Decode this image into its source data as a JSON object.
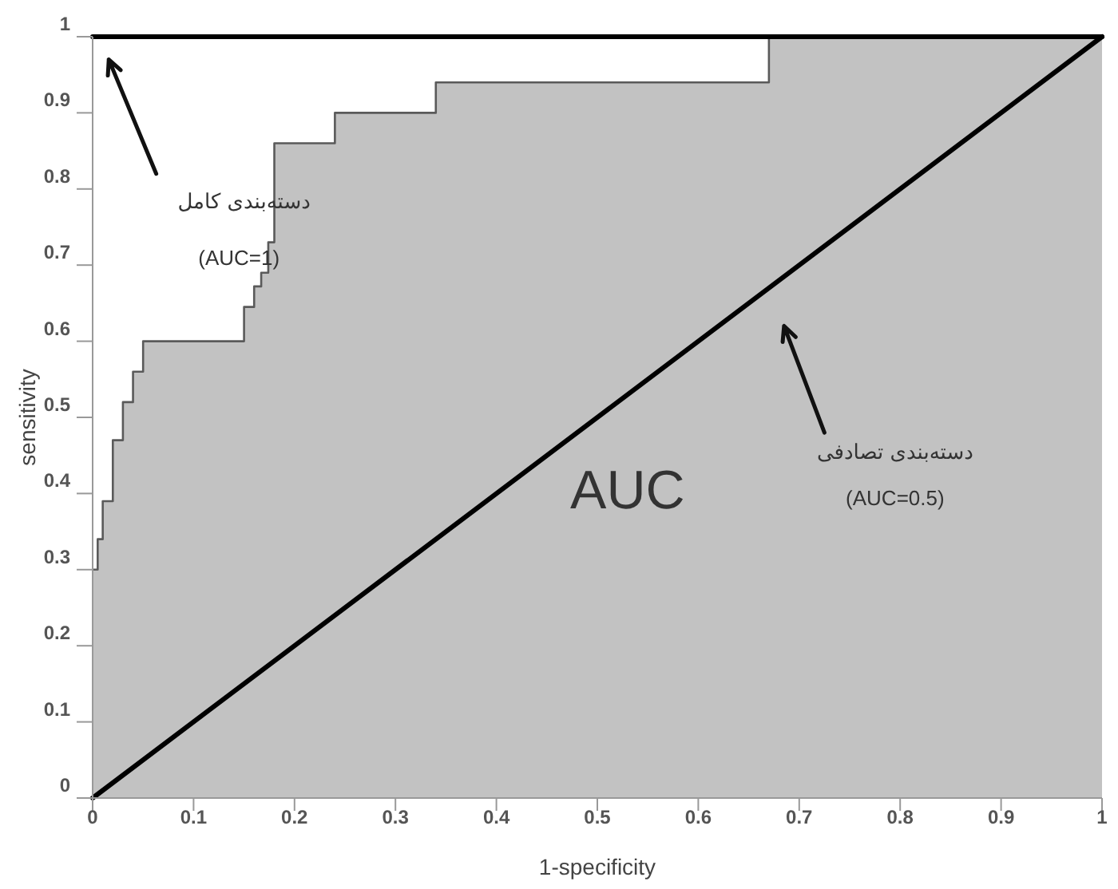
{
  "chart_data": {
    "type": "step",
    "xlabel": "1-specificity",
    "ylabel": "sensitivity",
    "xlim": [
      0,
      1
    ],
    "ylim": [
      0,
      1
    ],
    "xticks": [
      0,
      0.1,
      0.2,
      0.3,
      0.4,
      0.5,
      0.6,
      0.7,
      0.8,
      0.9,
      1
    ],
    "yticks": [
      0,
      0.1,
      0.2,
      0.3,
      0.4,
      0.5,
      0.6,
      0.7,
      0.8,
      0.9,
      1
    ],
    "grid": false,
    "series": [
      {
        "color": "#5a5a5a",
        "x": [
          0,
          0.005,
          0.01,
          0.02,
          0.03,
          0.04,
          0.05,
          0.15,
          0.16,
          0.167,
          0.174,
          0.18,
          0.24,
          0.34,
          0.67,
          1
        ],
        "values": [
          0.3,
          0.34,
          0.39,
          0.47,
          0.52,
          0.56,
          0.6,
          0.645,
          0.672,
          0.69,
          0.73,
          0.86,
          0.9,
          0.94,
          1,
          1
        ]
      },
      {
        "type": "line",
        "color": "#000000",
        "x": [
          0,
          1
        ],
        "values": [
          0,
          1
        ]
      },
      {
        "type": "line",
        "color": "#000000",
        "x": [
          0,
          1
        ],
        "values": [
          1,
          1
        ]
      }
    ],
    "annotations": [
      "دسته‌بندی کامل",
      "(AUC=1)",
      "دسته‌بندی تصادفی",
      "(AUC=0.5)",
      "AUC"
    ]
  }
}
